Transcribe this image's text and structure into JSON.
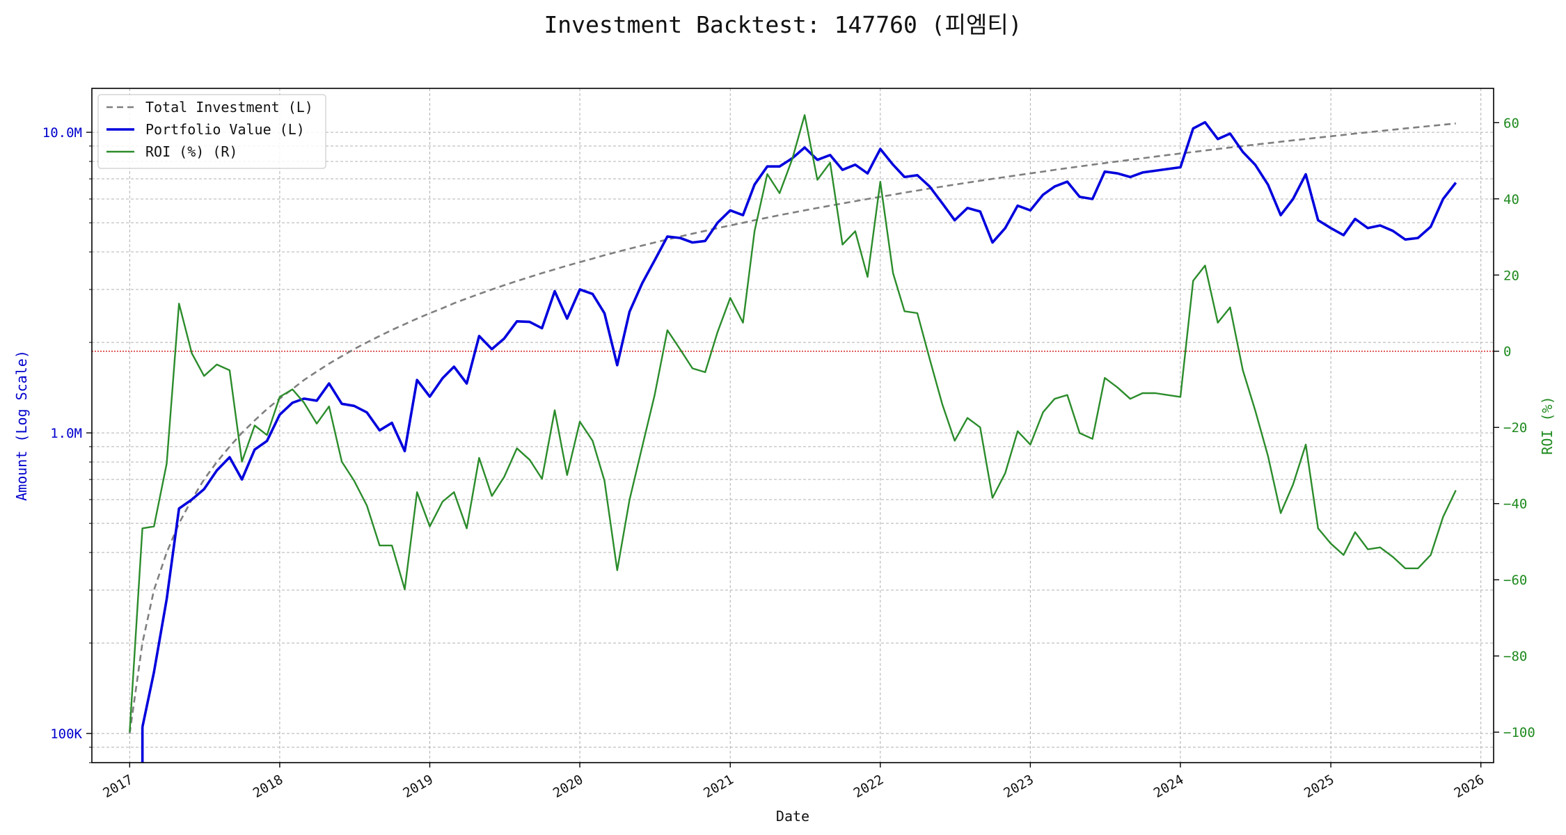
{
  "title": "Investment Backtest: 147760 (피엠티)",
  "chart_data": {
    "type": "line",
    "title": "Investment Backtest: 147760 (피엠티)",
    "xlabel": "Date",
    "ylabel_left": "Amount (Log Scale)",
    "ylabel_right": "ROI (%)",
    "x_tick_labels": [
      "2017",
      "2018",
      "2019",
      "2020",
      "2021",
      "2022",
      "2023",
      "2024",
      "2025",
      "2026"
    ],
    "y_left_tick_labels": [
      "100K",
      "1.0M",
      "10.0M"
    ],
    "y_right_tick_labels": [
      "-100",
      "-80",
      "-60",
      "-40",
      "-20",
      "0",
      "20",
      "40",
      "60"
    ],
    "y_left_scale": "log",
    "y_left_range": [
      80000,
      14000000
    ],
    "y_right_range": [
      -108,
      69
    ],
    "x_range": [
      "2016-10-01",
      "2026-02-01"
    ],
    "grid": true,
    "legend": "top-left",
    "zero_line": {
      "axis": "right",
      "value": 0,
      "color": "#d62728",
      "style": "dotted"
    },
    "x": [
      "2017-01-01",
      "2017-02-01",
      "2017-03-01",
      "2017-04-01",
      "2017-05-01",
      "2017-06-01",
      "2017-07-01",
      "2017-08-01",
      "2017-09-01",
      "2017-10-01",
      "2017-11-01",
      "2017-12-01",
      "2018-01-01",
      "2018-02-01",
      "2018-03-01",
      "2018-04-01",
      "2018-05-01",
      "2018-06-01",
      "2018-07-01",
      "2018-08-01",
      "2018-09-01",
      "2018-10-01",
      "2018-11-01",
      "2018-12-01",
      "2019-01-01",
      "2019-02-01",
      "2019-03-01",
      "2019-04-01",
      "2019-05-01",
      "2019-06-01",
      "2019-07-01",
      "2019-08-01",
      "2019-09-01",
      "2019-10-01",
      "2019-11-01",
      "2019-12-01",
      "2020-01-01",
      "2020-02-01",
      "2020-03-01",
      "2020-04-01",
      "2020-05-01",
      "2020-06-01",
      "2020-07-01",
      "2020-08-01",
      "2020-09-01",
      "2020-10-01",
      "2020-11-01",
      "2020-12-01",
      "2021-01-01",
      "2021-02-01",
      "2021-03-01",
      "2021-04-01",
      "2021-05-01",
      "2021-06-01",
      "2021-07-01",
      "2021-08-01",
      "2021-09-01",
      "2021-10-01",
      "2021-11-01",
      "2021-12-01",
      "2022-01-01",
      "2022-02-01",
      "2022-03-01",
      "2022-04-01",
      "2022-05-01",
      "2022-06-01",
      "2022-07-01",
      "2022-08-01",
      "2022-09-01",
      "2022-10-01",
      "2022-11-01",
      "2022-12-01",
      "2023-01-01",
      "2023-02-01",
      "2023-03-01",
      "2023-04-01",
      "2023-05-01",
      "2023-06-01",
      "2023-07-01",
      "2023-08-01",
      "2023-09-01",
      "2023-10-01",
      "2023-11-01",
      "2023-12-01",
      "2024-01-01",
      "2024-02-01",
      "2024-03-01",
      "2024-04-01",
      "2024-05-01",
      "2024-06-01",
      "2024-07-01",
      "2024-08-01",
      "2024-09-01",
      "2024-10-01",
      "2024-11-01",
      "2024-12-01",
      "2025-01-01",
      "2025-02-01",
      "2025-03-01",
      "2025-04-01",
      "2025-05-01",
      "2025-06-01",
      "2025-07-01",
      "2025-08-01",
      "2025-09-01",
      "2025-10-01",
      "2025-11-01"
    ],
    "series": [
      {
        "name": "Total Investment (L)",
        "axis": "left",
        "color": "#7f7f7f",
        "style": "dashed",
        "values": [
          100000,
          200000,
          300000,
          400000,
          500000,
          600000,
          700000,
          800000,
          900000,
          1000000,
          1100000,
          1200000,
          1300000,
          1400000,
          1500000,
          1600000,
          1700000,
          1800000,
          1900000,
          2000000,
          2100000,
          2200000,
          2300000,
          2400000,
          2500000,
          2600000,
          2700000,
          2800000,
          2900000,
          3000000,
          3100000,
          3200000,
          3300000,
          3400000,
          3500000,
          3600000,
          3700000,
          3800000,
          3900000,
          4000000,
          4100000,
          4200000,
          4300000,
          4400000,
          4500000,
          4600000,
          4700000,
          4800000,
          4900000,
          5000000,
          5100000,
          5200000,
          5300000,
          5400000,
          5500000,
          5600000,
          5700000,
          5800000,
          5900000,
          6000000,
          6100000,
          6200000,
          6300000,
          6400000,
          6500000,
          6600000,
          6700000,
          6800000,
          6900000,
          7000000,
          7100000,
          7200000,
          7300000,
          7400000,
          7500000,
          7600000,
          7700000,
          7800000,
          7900000,
          8000000,
          8100000,
          8200000,
          8300000,
          8400000,
          8500000,
          8600000,
          8700000,
          8800000,
          8900000,
          9000000,
          9100000,
          9200000,
          9300000,
          9400000,
          9500000,
          9600000,
          9700000,
          9800000,
          9900000,
          10000000,
          10100000,
          10200000,
          10300000,
          10400000,
          10500000,
          10600000,
          10700000
        ]
      },
      {
        "name": "Portfolio Value (L)",
        "axis": "left",
        "color": "#0000dd",
        "style": "solid",
        "values": [
          null,
          105000,
          160000,
          280000,
          560000,
          600000,
          650000,
          750000,
          830000,
          700000,
          880000,
          940000,
          1150000,
          1260000,
          1300000,
          1280000,
          1460000,
          1250000,
          1230000,
          1170000,
          1020000,
          1080000,
          870000,
          1500000,
          1320000,
          1520000,
          1660000,
          1460000,
          2100000,
          1900000,
          2060000,
          2350000,
          2340000,
          2230000,
          2960000,
          2400000,
          3000000,
          2900000,
          2500000,
          1680000,
          2530000,
          3150000,
          3750000,
          4500000,
          4450000,
          4300000,
          4350000,
          5000000,
          5500000,
          5300000,
          6700000,
          7700000,
          7700000,
          8200000,
          8900000,
          8100000,
          8400000,
          7500000,
          7800000,
          7300000,
          8800000,
          7800000,
          7100000,
          7200000,
          6600000,
          5800000,
          5100000,
          5600000,
          5450000,
          4300000,
          4800000,
          5700000,
          5500000,
          6200000,
          6600000,
          6850000,
          6100000,
          6000000,
          7400000,
          7300000,
          7100000,
          7350000,
          7450000,
          7550000,
          7650000,
          10300000,
          10800000,
          9500000,
          9900000,
          8600000,
          7800000,
          6700000,
          5300000,
          6000000,
          7250000,
          5100000,
          4800000,
          4550000,
          5150000,
          4800000,
          4900000,
          4700000,
          4400000,
          4450000,
          4850000,
          6000000,
          6800000
        ]
      },
      {
        "name": "ROI (%) (R)",
        "axis": "right",
        "color": "#2b8c2b",
        "style": "solid",
        "values": [
          -100,
          -46.5,
          -46,
          -29.5,
          12.5,
          -0.5,
          -6.5,
          -3.5,
          -5,
          -29,
          -19.5,
          -22,
          -12,
          -10,
          -13.5,
          -19,
          -14.5,
          -29,
          -34,
          -40.5,
          -51,
          -51,
          -62.5,
          -37,
          -46,
          -39.5,
          -37,
          -46.5,
          -28,
          -38,
          -33,
          -25.5,
          -28.5,
          -33.5,
          -15.5,
          -32.5,
          -18.5,
          -23.5,
          -34,
          -57.5,
          -39,
          -25,
          -11.5,
          5.5,
          0.5,
          -4.5,
          -5.5,
          5,
          14,
          7.5,
          31.5,
          46.5,
          41.5,
          50.5,
          62,
          45,
          49.5,
          28,
          31.5,
          19.5,
          44.5,
          20.5,
          10.5,
          10,
          -2,
          -14,
          -23.5,
          -17.5,
          -20,
          -38.5,
          -32,
          -21,
          -24.5,
          -16,
          -12.5,
          -11.5,
          -21.5,
          -23,
          -7,
          -9.5,
          -12.5,
          -11,
          -11,
          -11.5,
          -12,
          18.5,
          22.5,
          7.5,
          11.5,
          -5,
          -15.5,
          -27.5,
          -42.5,
          -35,
          -24.5,
          -46.5,
          -50.5,
          -53.5,
          -47.5,
          -52,
          -51.5,
          -54,
          -57,
          -57,
          -53.5,
          -43.5,
          -36.5
        ]
      }
    ]
  }
}
